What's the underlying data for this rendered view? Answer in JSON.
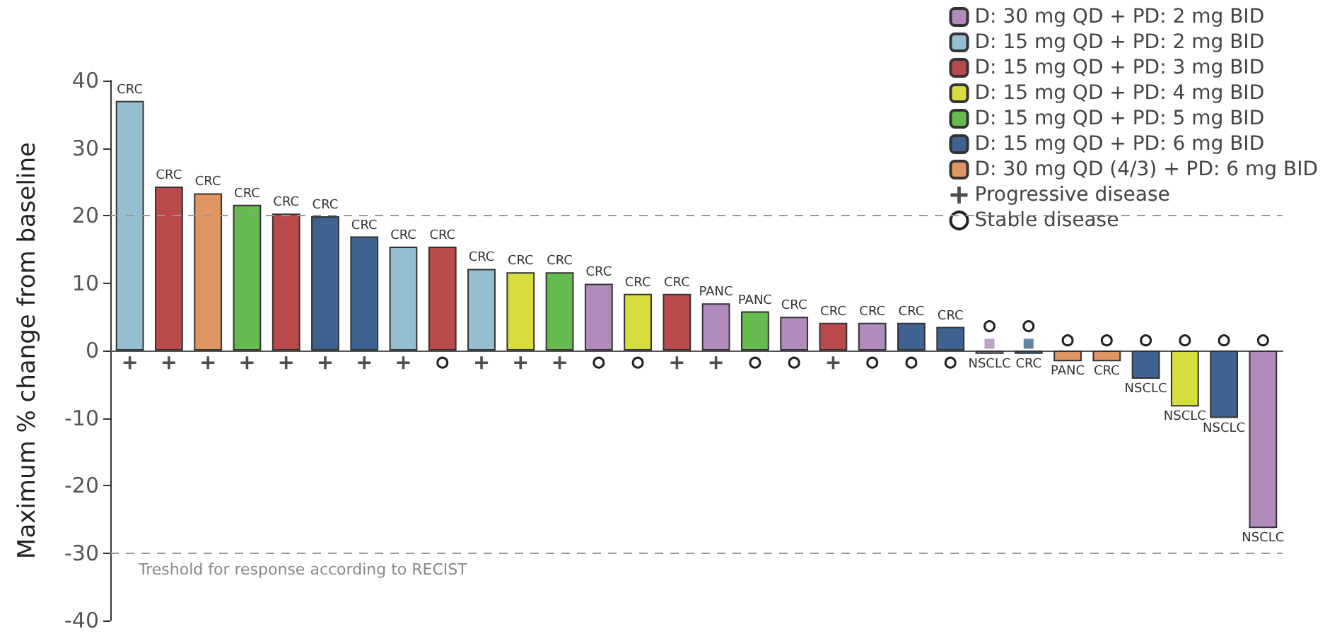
{
  "chart_data": {
    "type": "bar",
    "stacked": true,
    "ylabel": "Maximum % change from baseline",
    "categories": [
      null,
      null,
      null,
      null,
      null,
      null,
      null,
      null,
      null,
      null,
      null,
      null,
      null,
      null,
      null,
      null,
      null,
      null,
      null,
      null,
      null,
      null,
      null,
      null,
      null,
      null,
      null,
      null,
      null,
      null
    ],
    "ylim": [
      -40,
      40
    ],
    "yticks": [
      -40,
      -30,
      -20,
      -10,
      0,
      10,
      20,
      30,
      40
    ],
    "legend": "top right",
    "series": [
      {
        "name": "D: 30 mg QD + PD: 2 mg BID",
        "color": "#b08bbb",
        "values": [
          null,
          null,
          null,
          null,
          null,
          null,
          null,
          null,
          null,
          null,
          null,
          null,
          9.9,
          null,
          null,
          7,
          null,
          5,
          null,
          4.1,
          null,
          null,
          -0.5,
          null,
          null,
          null,
          null,
          null,
          null,
          -26.3
        ],
        "value_labels": [
          null,
          null,
          null,
          null,
          null,
          null,
          null,
          null,
          null,
          null,
          null,
          null,
          "CRC",
          null,
          null,
          "PANC",
          null,
          "CRC",
          null,
          "CRC",
          null,
          null,
          "NSCLC",
          null,
          null,
          null,
          null,
          null,
          null,
          "NSCLC"
        ]
      },
      {
        "name": "D: 15 mg QD + PD: 2 mg BID",
        "color": "#94bfd0",
        "values": [
          37,
          null,
          null,
          null,
          null,
          null,
          null,
          15.4,
          null,
          12.1,
          null,
          null,
          null,
          null,
          null,
          null,
          null,
          null,
          null,
          null,
          null,
          null,
          null,
          null,
          null,
          null,
          null,
          null,
          null,
          null
        ],
        "value_labels": [
          "CRC",
          null,
          null,
          null,
          null,
          null,
          null,
          "CRC",
          null,
          "CRC",
          null,
          null,
          null,
          null,
          null,
          null,
          null,
          null,
          null,
          null,
          null,
          null,
          null,
          null,
          null,
          null,
          null,
          null,
          null,
          null
        ]
      },
      {
        "name": "D: 15 mg QD + PD: 3 mg BID",
        "color": "#b84a4a",
        "values": [
          null,
          24.3,
          null,
          null,
          20.3,
          null,
          null,
          null,
          15.4,
          null,
          null,
          null,
          null,
          null,
          8.4,
          null,
          null,
          null,
          4.1,
          null,
          null,
          null,
          null,
          null,
          null,
          null,
          null,
          null,
          null,
          null
        ],
        "value_labels": [
          null,
          "CRC",
          null,
          null,
          "CRC",
          null,
          null,
          null,
          "CRC",
          null,
          null,
          null,
          null,
          null,
          "CRC",
          null,
          null,
          null,
          "CRC",
          null,
          null,
          null,
          null,
          null,
          null,
          null,
          null,
          null,
          null,
          null
        ]
      },
      {
        "name": "D: 15 mg QD + PD: 4 mg BID",
        "color": "#d8dd3f",
        "values": [
          null,
          null,
          null,
          null,
          null,
          null,
          null,
          null,
          null,
          null,
          11.6,
          null,
          null,
          8.4,
          null,
          null,
          null,
          null,
          null,
          null,
          null,
          null,
          null,
          null,
          null,
          null,
          null,
          -8.3,
          null,
          null
        ],
        "value_labels": [
          null,
          null,
          null,
          null,
          null,
          null,
          null,
          null,
          null,
          null,
          "CRC",
          null,
          null,
          "CRC",
          null,
          null,
          null,
          null,
          null,
          null,
          null,
          null,
          null,
          null,
          null,
          null,
          null,
          "NSCLC",
          null,
          null
        ]
      },
      {
        "name": "D: 15 mg QD + PD: 5 mg BID",
        "color": "#66bb50",
        "values": [
          null,
          null,
          null,
          21.6,
          null,
          null,
          null,
          null,
          null,
          null,
          null,
          11.6,
          null,
          null,
          null,
          null,
          5.8,
          null,
          null,
          null,
          null,
          null,
          null,
          null,
          null,
          null,
          null,
          null,
          null,
          null
        ],
        "value_labels": [
          null,
          null,
          null,
          "CRC",
          null,
          null,
          null,
          null,
          null,
          null,
          null,
          "CRC",
          null,
          null,
          null,
          null,
          "PANC",
          null,
          null,
          null,
          null,
          null,
          null,
          null,
          null,
          null,
          null,
          null,
          null,
          null
        ]
      },
      {
        "name": "D: 15 mg QD + PD: 6 mg BID",
        "color": "#3f6390",
        "values": [
          null,
          null,
          null,
          null,
          null,
          19.9,
          16.9,
          null,
          null,
          null,
          null,
          null,
          null,
          null,
          null,
          null,
          null,
          null,
          null,
          null,
          4.1,
          3.5,
          null,
          -0.5,
          null,
          null,
          -4.2,
          null,
          -10,
          null
        ],
        "value_labels": [
          null,
          null,
          null,
          null,
          null,
          "CRC",
          "CRC",
          null,
          null,
          null,
          null,
          null,
          null,
          null,
          null,
          null,
          null,
          null,
          null,
          null,
          "CRC",
          "CRC",
          null,
          "CRC",
          null,
          null,
          "NSCLC",
          null,
          "NSCLC",
          null
        ]
      },
      {
        "name": "D: 30 mg QD (4/3) + PD: 6 mg BID",
        "color": "#e09663",
        "values": [
          null,
          null,
          23.3,
          null,
          null,
          null,
          null,
          null,
          null,
          null,
          null,
          null,
          null,
          null,
          null,
          null,
          null,
          null,
          null,
          null,
          null,
          null,
          null,
          null,
          -1.6,
          -1.6,
          null,
          null,
          null,
          null
        ],
        "value_labels": [
          null,
          null,
          "CRC",
          null,
          null,
          null,
          null,
          null,
          null,
          null,
          null,
          null,
          null,
          null,
          null,
          null,
          null,
          null,
          null,
          null,
          null,
          null,
          null,
          null,
          "PANC",
          "CRC",
          null,
          null,
          null,
          null
        ]
      },
      {
        "name": "Progressive disease",
        "type": "scatter",
        "marker": "cross",
        "color": "#222222",
        "values": [
          -1.8,
          -1.8,
          -1.8,
          -1.8,
          -1.8,
          -1.8,
          -1.8,
          -1.8,
          null,
          -1.8,
          -1.8,
          -1.8,
          null,
          null,
          -1.8,
          -1.8,
          null,
          null,
          -1.8,
          null,
          null,
          null,
          null,
          null,
          null,
          null,
          null,
          null,
          null,
          null
        ]
      },
      {
        "name": "Stable disease",
        "type": "scatter",
        "marker": "circle",
        "color": "#222222",
        "values": [
          null,
          null,
          null,
          null,
          null,
          null,
          null,
          null,
          -1.8,
          null,
          null,
          null,
          -1.8,
          -1.8,
          null,
          null,
          -1.8,
          -1.8,
          null,
          -1.8,
          -1.8,
          -1.8,
          3.6,
          3.6,
          1.5,
          1.5,
          1.5,
          1.5,
          1.5,
          1.5
        ]
      },
      {
        "type": "scatter",
        "marker": "square",
        "color": "#b08bbb",
        "values": [
          null,
          null,
          null,
          null,
          null,
          null,
          null,
          null,
          null,
          null,
          null,
          null,
          null,
          null,
          null,
          null,
          null,
          null,
          null,
          null,
          null,
          null,
          1,
          null,
          null,
          null,
          null,
          null,
          null,
          null
        ]
      },
      {
        "type": "scatter",
        "marker": "square",
        "color": "#3f6390",
        "values": [
          null,
          null,
          null,
          null,
          null,
          null,
          null,
          null,
          null,
          null,
          null,
          null,
          null,
          null,
          null,
          null,
          null,
          null,
          null,
          null,
          null,
          null,
          null,
          1,
          null,
          null,
          null,
          null,
          null,
          null
        ]
      }
    ],
    "ref_lines": [
      {
        "axis": "y",
        "value": 20,
        "line_style": "dashed"
      },
      {
        "axis": "y",
        "value": -30,
        "line_style": "dashed",
        "label": "Treshold for response according to RECIST"
      }
    ]
  }
}
